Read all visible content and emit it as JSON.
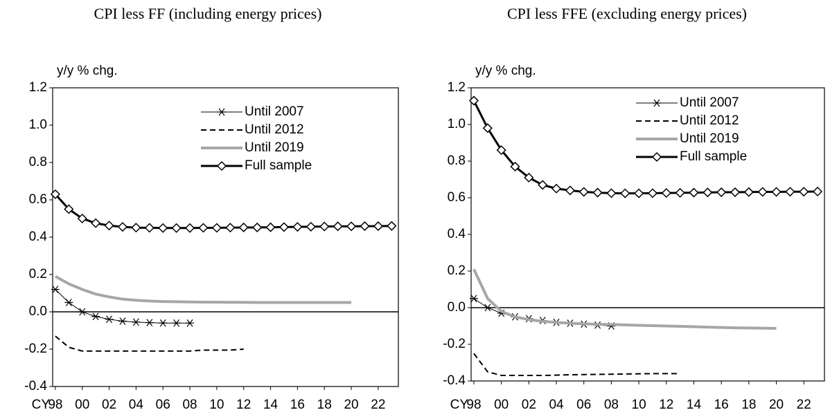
{
  "chart_data": [
    {
      "type": "line",
      "title": "CPI less FF (including energy prices)",
      "y_label": "y/y % chg.",
      "x_label": "CY",
      "x": [
        1998,
        1999,
        2000,
        2001,
        2002,
        2003,
        2004,
        2005,
        2006,
        2007,
        2008,
        2009,
        2010,
        2011,
        2012,
        2013,
        2014,
        2015,
        2016,
        2017,
        2018,
        2019,
        2020,
        2021,
        2022,
        2023
      ],
      "xlim": [
        1997.8,
        2023.5
      ],
      "xticks": [
        {
          "value": 1998,
          "label": "98"
        },
        {
          "value": 2000,
          "label": "00"
        },
        {
          "value": 2002,
          "label": "02"
        },
        {
          "value": 2004,
          "label": "04"
        },
        {
          "value": 2006,
          "label": "06"
        },
        {
          "value": 2008,
          "label": "08"
        },
        {
          "value": 2010,
          "label": "10"
        },
        {
          "value": 2012,
          "label": "12"
        },
        {
          "value": 2014,
          "label": "14"
        },
        {
          "value": 2016,
          "label": "16"
        },
        {
          "value": 2018,
          "label": "18"
        },
        {
          "value": 2020,
          "label": "20"
        },
        {
          "value": 2022,
          "label": "22"
        }
      ],
      "ylim": [
        -0.4,
        1.2
      ],
      "yticks": [
        -0.4,
        -0.2,
        {
          "value": 0,
          "label": "0.0"
        },
        0.2,
        0.4,
        0.6,
        0.8,
        {
          "value": 1,
          "label": "1.0"
        },
        1.2
      ],
      "legend": "upper right",
      "series": [
        {
          "name": "Until 2007",
          "color": "#000000",
          "width": 1,
          "dash": "none",
          "marker": "star",
          "values": [
            0.12,
            0.05,
            0.0,
            -0.025,
            -0.04,
            -0.05,
            -0.055,
            -0.058,
            -0.06,
            -0.06,
            -0.06,
            null,
            null,
            null,
            null,
            null,
            null,
            null,
            null,
            null,
            null,
            null,
            null,
            null,
            null,
            null
          ]
        },
        {
          "name": "Until 2012",
          "color": "#000000",
          "width": 2,
          "dash": "dashed",
          "marker": "none",
          "values": [
            -0.13,
            -0.19,
            -0.21,
            -0.21,
            -0.21,
            -0.21,
            -0.21,
            -0.21,
            -0.21,
            -0.21,
            -0.21,
            -0.205,
            -0.205,
            -0.205,
            -0.2,
            null,
            null,
            null,
            null,
            null,
            null,
            null,
            null,
            null,
            null,
            null
          ]
        },
        {
          "name": "Until 2019",
          "color": "#a6a6a6",
          "width": 4,
          "dash": "none",
          "marker": "none",
          "values": [
            0.19,
            0.15,
            0.12,
            0.095,
            0.08,
            0.068,
            0.062,
            0.058,
            0.055,
            0.054,
            0.053,
            0.052,
            0.052,
            0.051,
            0.051,
            0.05,
            0.05,
            0.05,
            0.05,
            0.05,
            0.05,
            0.05,
            0.05,
            null,
            null,
            null
          ]
        },
        {
          "name": "Full sample",
          "color": "#000000",
          "width": 3,
          "dash": "none",
          "marker": "diamond",
          "values": [
            0.63,
            0.55,
            0.5,
            0.475,
            0.462,
            0.455,
            0.451,
            0.45,
            0.449,
            0.449,
            0.449,
            0.45,
            0.45,
            0.451,
            0.452,
            0.452,
            0.453,
            0.454,
            0.455,
            0.456,
            0.457,
            0.458,
            0.458,
            0.459,
            0.459,
            0.46
          ]
        }
      ]
    },
    {
      "type": "line",
      "title": "CPI less FFE (excluding energy prices)",
      "y_label": "y/y % chg.",
      "x_label": "CY",
      "x": [
        1998,
        1999,
        2000,
        2001,
        2002,
        2003,
        2004,
        2005,
        2006,
        2007,
        2008,
        2009,
        2010,
        2011,
        2012,
        2013,
        2014,
        2015,
        2016,
        2017,
        2018,
        2019,
        2020,
        2021,
        2022,
        2023
      ],
      "xlim": [
        1997.8,
        2023.5
      ],
      "xticks": [
        {
          "value": 1998,
          "label": "98"
        },
        {
          "value": 2000,
          "label": "00"
        },
        {
          "value": 2002,
          "label": "02"
        },
        {
          "value": 2004,
          "label": "04"
        },
        {
          "value": 2006,
          "label": "06"
        },
        {
          "value": 2008,
          "label": "08"
        },
        {
          "value": 2010,
          "label": "10"
        },
        {
          "value": 2012,
          "label": "12"
        },
        {
          "value": 2014,
          "label": "14"
        },
        {
          "value": 2016,
          "label": "16"
        },
        {
          "value": 2018,
          "label": "18"
        },
        {
          "value": 2020,
          "label": "20"
        },
        {
          "value": 2022,
          "label": "22"
        }
      ],
      "ylim": [
        -0.4,
        1.2
      ],
      "yticks": [
        -0.4,
        -0.2,
        {
          "value": 0,
          "label": "0.0"
        },
        0.2,
        0.4,
        0.6,
        0.8,
        {
          "value": 1,
          "label": "1.0"
        },
        1.2
      ],
      "legend": "upper right",
      "series": [
        {
          "name": "Until 2007",
          "color": "#000000",
          "width": 1,
          "dash": "none",
          "marker": "star",
          "values": [
            0.05,
            0.0,
            -0.03,
            -0.05,
            -0.06,
            -0.07,
            -0.08,
            -0.085,
            -0.09,
            -0.095,
            -0.1,
            null,
            null,
            null,
            null,
            null,
            null,
            null,
            null,
            null,
            null,
            null,
            null,
            null,
            null,
            null
          ]
        },
        {
          "name": "Until 2012",
          "color": "#000000",
          "width": 2,
          "dash": "dashed",
          "marker": "none",
          "values": [
            -0.25,
            -0.35,
            -0.37,
            -0.37,
            -0.37,
            -0.37,
            -0.368,
            -0.366,
            -0.365,
            -0.364,
            -0.363,
            -0.362,
            -0.361,
            -0.36,
            -0.36,
            -0.36,
            null,
            null,
            null,
            null,
            null,
            null,
            null,
            null,
            null,
            null
          ]
        },
        {
          "name": "Until 2019",
          "color": "#a6a6a6",
          "width": 4,
          "dash": "none",
          "marker": "none",
          "values": [
            0.21,
            0.05,
            -0.02,
            -0.05,
            -0.065,
            -0.075,
            -0.08,
            -0.085,
            -0.088,
            -0.09,
            -0.092,
            -0.094,
            -0.096,
            -0.098,
            -0.1,
            -0.102,
            -0.104,
            -0.106,
            -0.108,
            -0.11,
            -0.111,
            -0.112,
            -0.113,
            null,
            null,
            null
          ]
        },
        {
          "name": "Full sample",
          "color": "#000000",
          "width": 3,
          "dash": "none",
          "marker": "diamond",
          "values": [
            1.13,
            0.98,
            0.86,
            0.77,
            0.71,
            0.67,
            0.65,
            0.64,
            0.632,
            0.628,
            0.625,
            0.624,
            0.624,
            0.625,
            0.626,
            0.627,
            0.628,
            0.629,
            0.63,
            0.63,
            0.631,
            0.632,
            0.632,
            0.633,
            0.633,
            0.634
          ]
        }
      ]
    }
  ]
}
